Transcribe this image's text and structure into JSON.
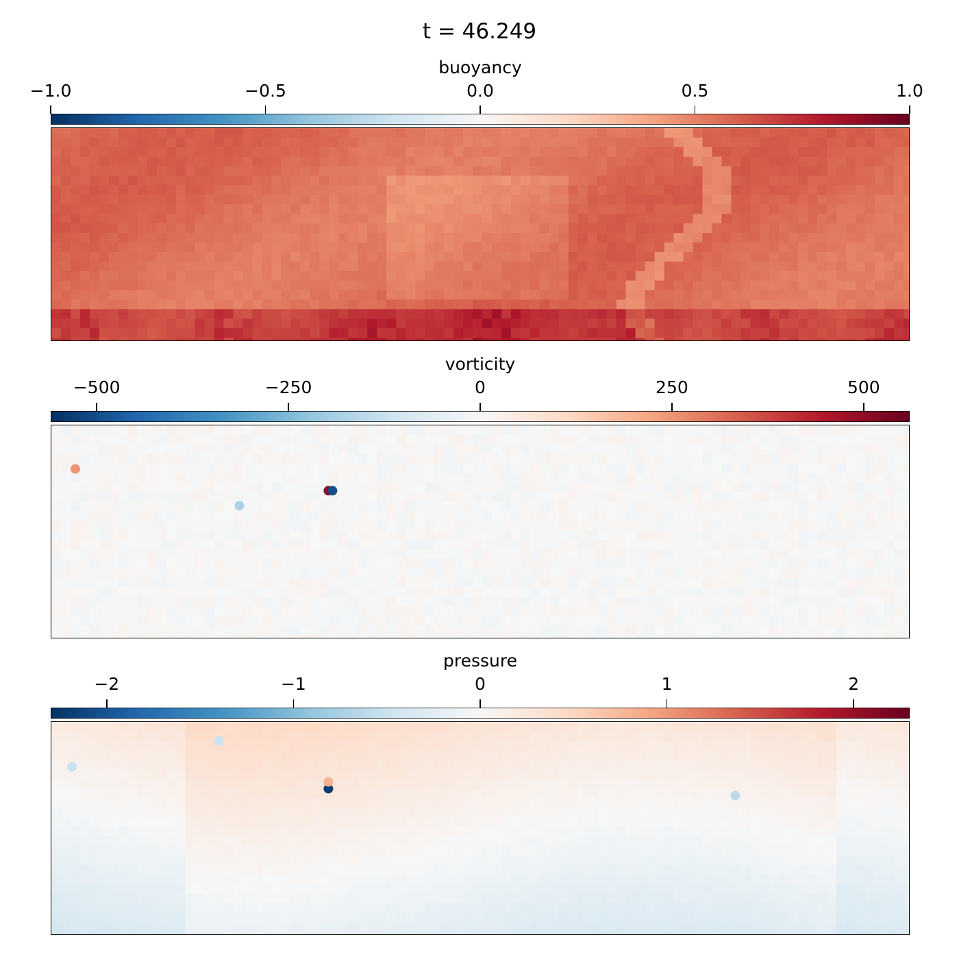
{
  "title": "t = 46.249",
  "colors": {
    "colormap": "RdBu_r",
    "stops": [
      "#053061",
      "#2166ac",
      "#4393c3",
      "#92c5de",
      "#d1e5f0",
      "#f7f7f7",
      "#fddbc7",
      "#f4a582",
      "#d6604d",
      "#b2182b",
      "#67001f"
    ]
  },
  "chart_data": [
    {
      "type": "heatmap",
      "name": "buoyancy",
      "label": "buoyancy",
      "clim": [
        -1.0,
        1.0
      ],
      "ticks": [
        -1.0,
        -0.5,
        0.0,
        0.5,
        1.0
      ],
      "tick_labels": [
        "−1.0",
        "−0.5",
        "0.0",
        "0.5",
        "1.0"
      ],
      "typical_value": 0.55,
      "description_range": [
        0.35,
        0.9
      ]
    },
    {
      "type": "heatmap",
      "name": "vorticity",
      "label": "vorticity",
      "clim": [
        -560,
        560
      ],
      "ticks": [
        -500,
        -250,
        0,
        250,
        500
      ],
      "tick_labels": [
        "−500",
        "−250",
        "0",
        "250",
        "500"
      ],
      "typical_value": 0,
      "description_range": [
        -500,
        500
      ]
    },
    {
      "type": "heatmap",
      "name": "pressure",
      "label": "pressure",
      "clim": [
        -2.3,
        2.3
      ],
      "ticks": [
        -2,
        -1,
        0,
        1,
        2
      ],
      "tick_labels": [
        "−2",
        "−1",
        "0",
        "1",
        "2"
      ],
      "typical_value": 0,
      "description_range": [
        -2.3,
        0.8
      ]
    }
  ]
}
